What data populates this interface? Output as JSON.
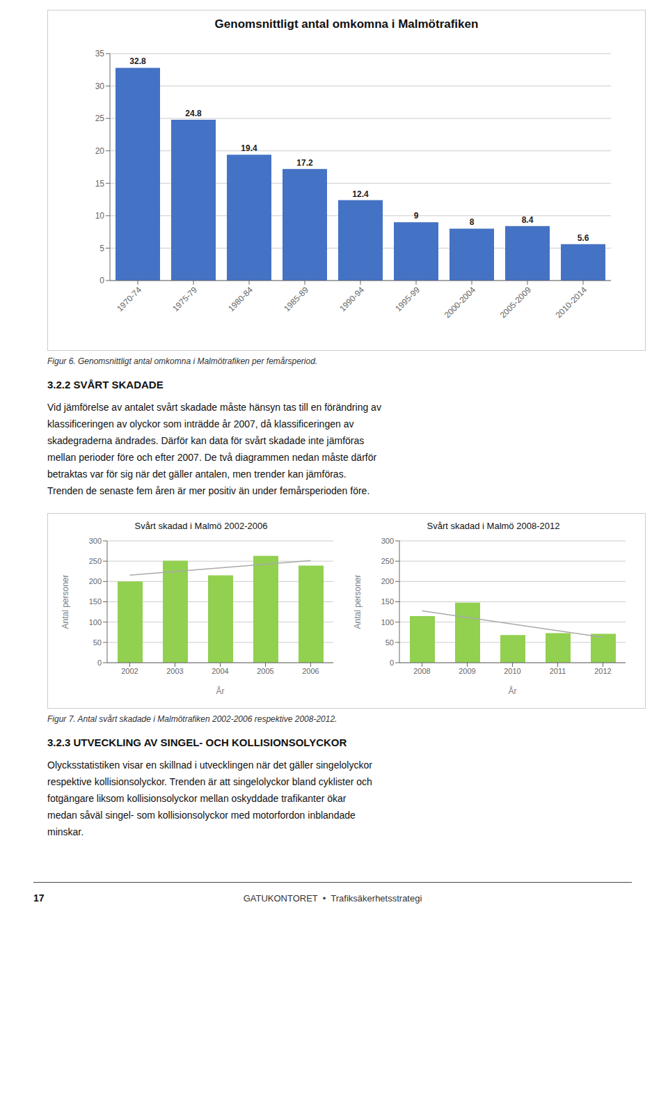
{
  "chart_data": [
    {
      "type": "bar",
      "title": "Genomsnittligt antal omkomna i Malmötrafiken",
      "categories": [
        "1970-74",
        "1975-79",
        "1980-84",
        "1985-89",
        "1990-94",
        "1995-99",
        "2000-2004",
        "2005-2009",
        "2010-2014"
      ],
      "values": [
        32.8,
        24.8,
        19.4,
        17.2,
        12.4,
        9,
        8,
        8.4,
        5.6
      ],
      "color": "#4472C4",
      "ylim": [
        0,
        35
      ],
      "yticks": [
        0,
        5,
        10,
        15,
        20,
        25,
        30,
        35
      ],
      "grid": true,
      "data_labels": true
    },
    {
      "type": "bar",
      "title": "Svårt skadad i Malmö 2002-2006",
      "xlabel": "År",
      "ylabel": "Antal personer",
      "categories": [
        "2002",
        "2003",
        "2004",
        "2005",
        "2006"
      ],
      "series": [
        {
          "type": "bar",
          "color": "#92D050",
          "values": [
            200,
            251,
            215,
            263,
            239
          ]
        },
        {
          "type": "line",
          "color": "#AAAAAA",
          "values": [
            215.6,
            224.6,
            233.6,
            242.6,
            251.6
          ]
        }
      ],
      "ylim": [
        0,
        300
      ],
      "yticks": [
        0,
        50,
        100,
        150,
        200,
        250,
        300
      ],
      "grid": true
    },
    {
      "type": "bar",
      "title": "Svårt skadad i Malmö 2008-2012",
      "xlabel": "År",
      "ylabel": "Antal personer",
      "categories": [
        "2008",
        "2009",
        "2010",
        "2011",
        "2012"
      ],
      "series": [
        {
          "type": "bar",
          "color": "#92D050",
          "values": [
            115,
            148,
            68,
            73,
            71
          ]
        },
        {
          "type": "line",
          "color": "#AAAAAA",
          "values": [
            127.6,
            111.3,
            95,
            78.7,
            62.4
          ]
        }
      ],
      "ylim": [
        0,
        300
      ],
      "yticks": [
        0,
        50,
        100,
        150,
        200,
        250,
        300
      ],
      "grid": true
    }
  ],
  "annotations": [
    "Figur 6. Genomsnittligt antal omkomna i Malmötrafiken per femårsperiod.",
    "3.2.2  SVÅRT SKADADE",
    "Vid jämförelse av antalet svårt skadade måste hänsyn tas till en förändring av",
    "klassificeringen av olyckor som inträdde år 2007, då klassificeringen av",
    "skadegraderna ändrades. Därför kan data för svårt skadade inte jämföras",
    "mellan perioder före och efter 2007. De två diagrammen nedan måste därför",
    "betraktas var för sig när det gäller antalen, men trender kan jämföras.",
    "Trenden de senaste fem åren är mer positiv än under femårsperioden före.",
    "Figur 7. Antal svårt skadade i Malmötrafiken 2002-2006 respektive 2008-2012.",
    "3.2.3  UTVECKLING AV SINGEL- OCH KOLLISIONSOLYCKOR",
    "Olycksstatistiken visar en skillnad i utvecklingen när det gäller singelolyckor",
    "respektive kollisionsolyckor. Trenden är att singelolyckor bland cyklister och",
    "fotgängare liksom kollisionsolyckor mellan oskyddade trafikanter ökar",
    "medan såväl singel- som kollisionsolyckor med motorfordon inblandade",
    "minskar.",
    "17",
    "GATUKONTORET  •  Trafiksäkerhetsstrategi"
  ]
}
